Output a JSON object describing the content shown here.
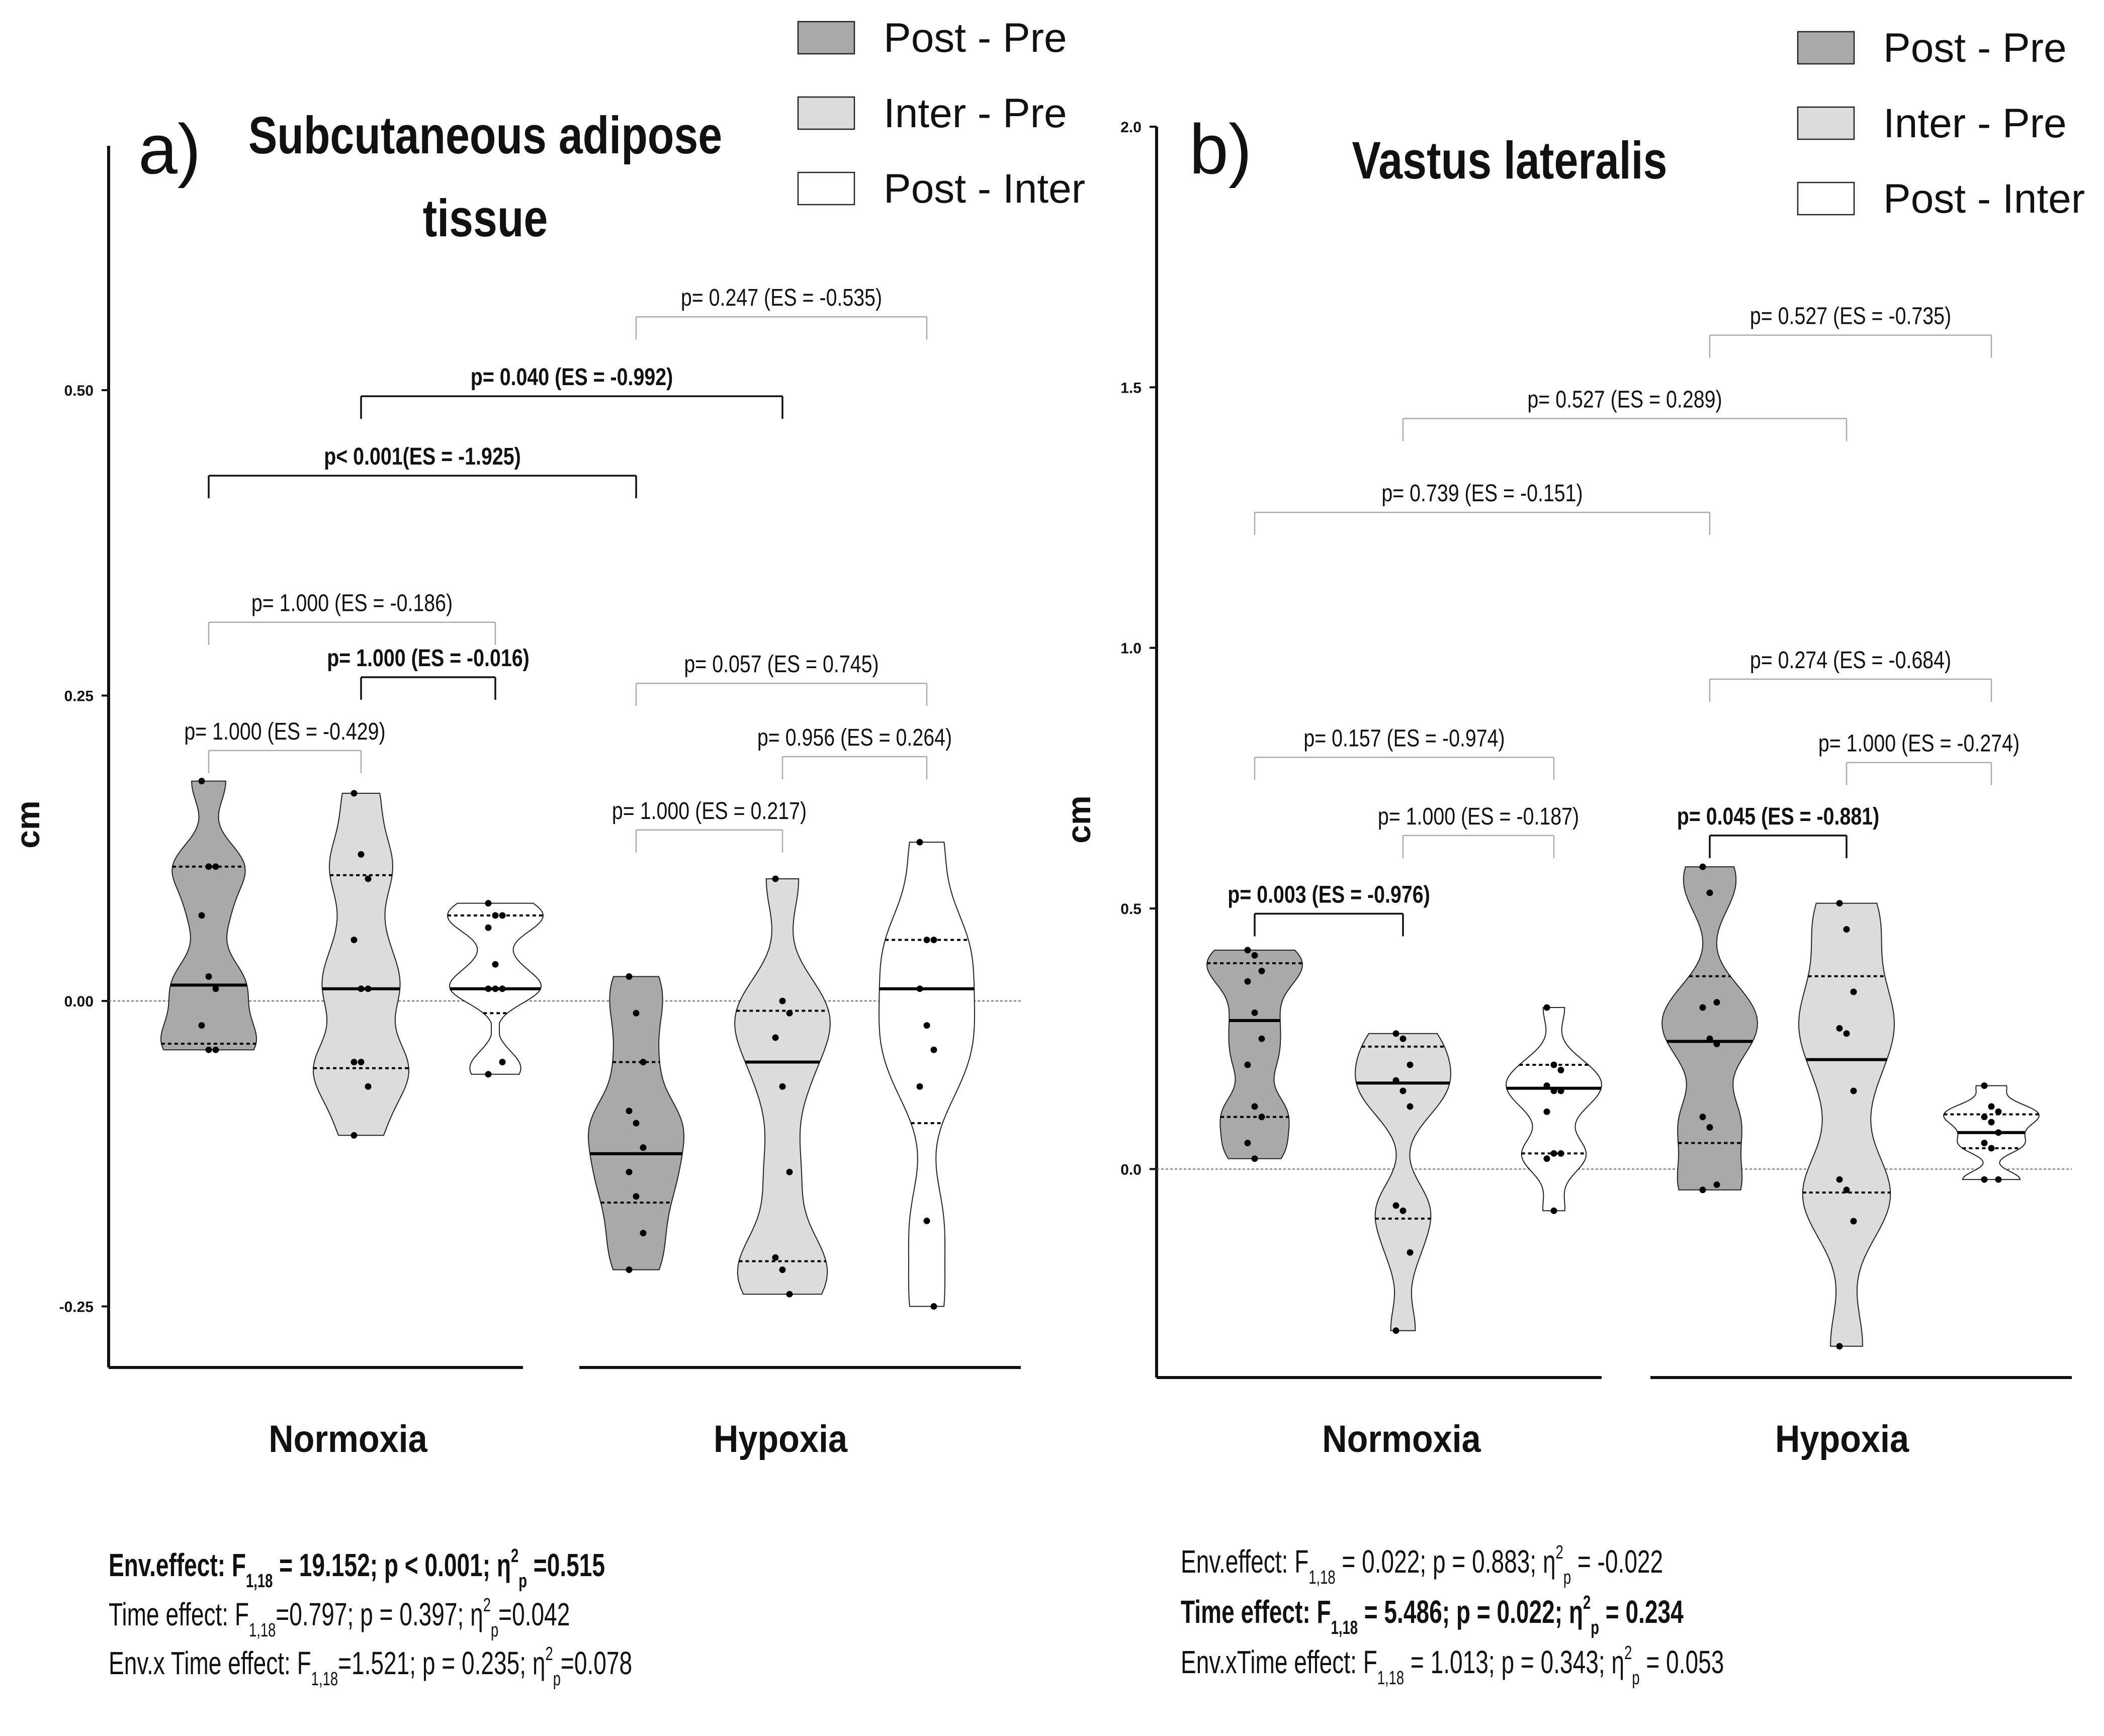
{
  "legend": [
    {
      "label": "Post - Pre",
      "fill": "#a9a9a9"
    },
    {
      "label": "Inter - Pre",
      "fill": "#dcdcdc"
    },
    {
      "label": "Post - Inter",
      "fill": "#ffffff"
    }
  ],
  "chart_data": [
    {
      "type": "violin",
      "panel_letter": "a)",
      "title_line1": "Subcutaneous adipose",
      "title_line2": "tissue",
      "ylabel": "cm",
      "ylim": [
        -0.3,
        0.7
      ],
      "yticks": [
        {
          "value": -0.25,
          "label": "-0.25"
        },
        {
          "value": 0.0,
          "label": "0.00"
        },
        {
          "value": 0.25,
          "label": "0.25"
        },
        {
          "value": 0.5,
          "label": "0.50"
        }
      ],
      "groups": [
        "Normoxia",
        "Hypoxia"
      ],
      "series": [
        {
          "name": "Post - Pre",
          "group": "Normoxia",
          "slot": 0,
          "min": -0.04,
          "max": 0.18,
          "median": 0.013,
          "q1": -0.035,
          "q3": 0.11,
          "points": [
            0.18,
            0.11,
            0.11,
            0.07,
            0.02,
            0.01,
            -0.02,
            -0.04,
            -0.04
          ]
        },
        {
          "name": "Inter - Pre",
          "group": "Normoxia",
          "slot": 1,
          "min": -0.11,
          "max": 0.17,
          "median": 0.01,
          "q1": -0.055,
          "q3": 0.103,
          "points": [
            0.17,
            0.12,
            0.1,
            0.05,
            0.01,
            0.01,
            -0.05,
            -0.05,
            -0.07,
            -0.11
          ]
        },
        {
          "name": "Post - Inter",
          "group": "Normoxia",
          "slot": 2,
          "min": -0.06,
          "max": 0.08,
          "median": 0.01,
          "q1": -0.01,
          "q3": 0.07,
          "points": [
            0.08,
            0.07,
            0.07,
            0.06,
            0.03,
            0.01,
            0.01,
            0.01,
            -0.05,
            -0.06
          ]
        },
        {
          "name": "Post - Pre",
          "group": "Hypoxia",
          "slot": 3,
          "min": -0.22,
          "max": 0.02,
          "median": -0.125,
          "q1": -0.165,
          "q3": -0.05,
          "points": [
            0.02,
            -0.01,
            -0.05,
            -0.09,
            -0.1,
            -0.12,
            -0.14,
            -0.16,
            -0.19,
            -0.22
          ]
        },
        {
          "name": "Inter - Pre",
          "group": "Hypoxia",
          "slot": 4,
          "min": -0.24,
          "max": 0.1,
          "median": -0.05,
          "q1": -0.213,
          "q3": -0.008,
          "points": [
            0.1,
            0.0,
            -0.01,
            -0.03,
            -0.07,
            -0.14,
            -0.21,
            -0.22,
            -0.24
          ]
        },
        {
          "name": "Post - Inter",
          "group": "Hypoxia",
          "slot": 5,
          "min": -0.25,
          "max": 0.13,
          "median": 0.01,
          "q1": -0.1,
          "q3": 0.05,
          "points": [
            0.13,
            0.05,
            0.05,
            0.01,
            -0.02,
            -0.04,
            -0.07,
            -0.18,
            -0.25
          ]
        }
      ],
      "comparisons": [
        {
          "text": "p= 0.247 (ES = -0.535)",
          "from": 3,
          "to": 5,
          "y": 0.56,
          "bold": false
        },
        {
          "text": "p= 0.040 (ES = -0.992)",
          "from": 1,
          "to": 4,
          "y": 0.495,
          "bold": true
        },
        {
          "text": "p< 0.001(ES = -1.925)",
          "from": 0,
          "to": 3,
          "y": 0.43,
          "bold": true
        },
        {
          "text": "p= 1.000 (ES = -0.186)",
          "from": 0,
          "to": 2,
          "y": 0.31,
          "bold": false
        },
        {
          "text": "p= 1.000 (ES = -0.016)",
          "from": 1,
          "to": 2,
          "y": 0.265,
          "bold": true
        },
        {
          "text": "p= 1.000 (ES = -0.429)",
          "from": 0,
          "to": 1,
          "y": 0.205,
          "bold": false
        },
        {
          "text": "p= 0.057 (ES = 0.745)",
          "from": 3,
          "to": 5,
          "y": 0.26,
          "bold": false
        },
        {
          "text": "p= 0.956 (ES = 0.264)",
          "from": 4,
          "to": 5,
          "y": 0.2,
          "bold": false
        },
        {
          "text": "p= 1.000 (ES = 0.217)",
          "from": 3,
          "to": 4,
          "y": 0.14,
          "bold": false
        }
      ],
      "stats": [
        {
          "bold": true,
          "parts": [
            {
              "t": "Env.effect: F"
            },
            {
              "sub": "1,18"
            },
            {
              "t": " = 19.152; p < 0.001; η"
            },
            {
              "sup": "2"
            },
            {
              "sub": "p"
            },
            {
              "t": " =0.515"
            }
          ]
        },
        {
          "bold": false,
          "parts": [
            {
              "t": "Time effect: F"
            },
            {
              "sub": "1,18"
            },
            {
              "t": "=0.797; p = 0.397; η"
            },
            {
              "sup": "2"
            },
            {
              "sub": "p"
            },
            {
              "t": "=0.042"
            }
          ]
        },
        {
          "bold": false,
          "parts": [
            {
              "t": "Env.x Time effect: F"
            },
            {
              "sub": "1,18"
            },
            {
              "t": "=1.521; p = 0.235; η"
            },
            {
              "sup": "2"
            },
            {
              "sub": "p"
            },
            {
              "t": "=0.078"
            }
          ]
        }
      ]
    },
    {
      "type": "violin",
      "panel_letter": "b)",
      "title_line1": "Vastus lateralis",
      "title_line2": "",
      "ylabel": "cm",
      "ylim": [
        -0.4,
        2.0
      ],
      "yticks": [
        {
          "value": 0.0,
          "label": "0.0"
        },
        {
          "value": 0.5,
          "label": "0.5"
        },
        {
          "value": 1.0,
          "label": "1.0"
        },
        {
          "value": 1.5,
          "label": "1.5"
        },
        {
          "value": 2.0,
          "label": "2.0"
        }
      ],
      "groups": [
        "Normoxia",
        "Hypoxia"
      ],
      "series": [
        {
          "name": "Post - Pre",
          "group": "Normoxia",
          "slot": 0,
          "min": 0.02,
          "max": 0.42,
          "median": 0.285,
          "q1": 0.1,
          "q3": 0.395,
          "points": [
            0.42,
            0.41,
            0.38,
            0.36,
            0.3,
            0.25,
            0.2,
            0.12,
            0.1,
            0.05,
            0.02
          ]
        },
        {
          "name": "Inter - Pre",
          "group": "Normoxia",
          "slot": 1,
          "min": -0.31,
          "max": 0.26,
          "median": 0.165,
          "q1": -0.095,
          "q3": 0.235,
          "points": [
            0.26,
            0.25,
            0.2,
            0.17,
            0.15,
            0.12,
            -0.07,
            -0.08,
            -0.16,
            -0.31
          ]
        },
        {
          "name": "Post - Inter",
          "group": "Normoxia",
          "slot": 2,
          "min": -0.08,
          "max": 0.31,
          "median": 0.155,
          "q1": 0.03,
          "q3": 0.2,
          "points": [
            0.31,
            0.2,
            0.19,
            0.16,
            0.15,
            0.15,
            0.11,
            0.03,
            0.03,
            0.02,
            -0.08
          ]
        },
        {
          "name": "Post - Pre",
          "group": "Hypoxia",
          "slot": 3,
          "min": -0.04,
          "max": 0.58,
          "median": 0.245,
          "q1": 0.05,
          "q3": 0.37,
          "points": [
            0.58,
            0.53,
            0.32,
            0.31,
            0.25,
            0.24,
            0.1,
            0.08,
            -0.03,
            -0.04
          ]
        },
        {
          "name": "Inter - Pre",
          "group": "Hypoxia",
          "slot": 4,
          "min": -0.34,
          "max": 0.51,
          "median": 0.21,
          "q1": -0.045,
          "q3": 0.37,
          "points": [
            0.51,
            0.46,
            0.34,
            0.27,
            0.26,
            0.15,
            -0.02,
            -0.04,
            -0.1,
            -0.34
          ]
        },
        {
          "name": "Post - Inter",
          "group": "Hypoxia",
          "slot": 5,
          "min": -0.02,
          "max": 0.16,
          "median": 0.07,
          "q1": 0.04,
          "q3": 0.105,
          "points": [
            0.16,
            0.12,
            0.11,
            0.1,
            0.09,
            0.07,
            0.05,
            0.04,
            -0.02,
            -0.02
          ]
        }
      ],
      "comparisons": [
        {
          "text": "p= 0.527 (ES = -0.735)",
          "from": 3,
          "to": 5,
          "y": 1.6,
          "bold": false
        },
        {
          "text": "p= 0.527 (ES = 0.289)",
          "from": 1,
          "to": 4,
          "y": 1.44,
          "bold": false
        },
        {
          "text": "p= 0.739 (ES = -0.151)",
          "from": 0,
          "to": 3,
          "y": 1.26,
          "bold": false
        },
        {
          "text": "p= 0.274 (ES = -0.684)",
          "from": 3,
          "to": 5,
          "y": 0.94,
          "bold": false
        },
        {
          "text": "p= 0.157 (ES = -0.974)",
          "from": 0,
          "to": 2,
          "y": 0.79,
          "bold": false
        },
        {
          "text": "p= 1.000 (ES = -0.274)",
          "from": 4,
          "to": 5,
          "y": 0.78,
          "bold": false
        },
        {
          "text": "p= 1.000 (ES = -0.187)",
          "from": 1,
          "to": 2,
          "y": 0.64,
          "bold": false
        },
        {
          "text": "p= 0.045 (ES = -0.881)",
          "from": 3,
          "to": 4,
          "y": 0.64,
          "bold": true
        },
        {
          "text": "p= 0.003 (ES = -0.976)",
          "from": 0,
          "to": 1,
          "y": 0.49,
          "bold": true
        }
      ],
      "stats": [
        {
          "bold": false,
          "parts": [
            {
              "t": "Env.effect: F"
            },
            {
              "sub": "1,18"
            },
            {
              "t": " = 0.022; p = 0.883; η"
            },
            {
              "sup": "2"
            },
            {
              "sub": "p"
            },
            {
              "t": " = -0.022"
            }
          ]
        },
        {
          "bold": true,
          "parts": [
            {
              "t": "Time effect: F"
            },
            {
              "sub": "1,18"
            },
            {
              "t": " = 5.486; p = 0.022; η"
            },
            {
              "sup": "2"
            },
            {
              "sub": "p"
            },
            {
              "t": " = 0.234"
            }
          ]
        },
        {
          "bold": false,
          "parts": [
            {
              "t": "Env.xTime effect: F"
            },
            {
              "sub": "1,18"
            },
            {
              "t": " = 1.013; p = 0.343; η"
            },
            {
              "sup": "2"
            },
            {
              "sub": "p"
            },
            {
              "t": " = 0.053"
            }
          ]
        }
      ]
    }
  ]
}
